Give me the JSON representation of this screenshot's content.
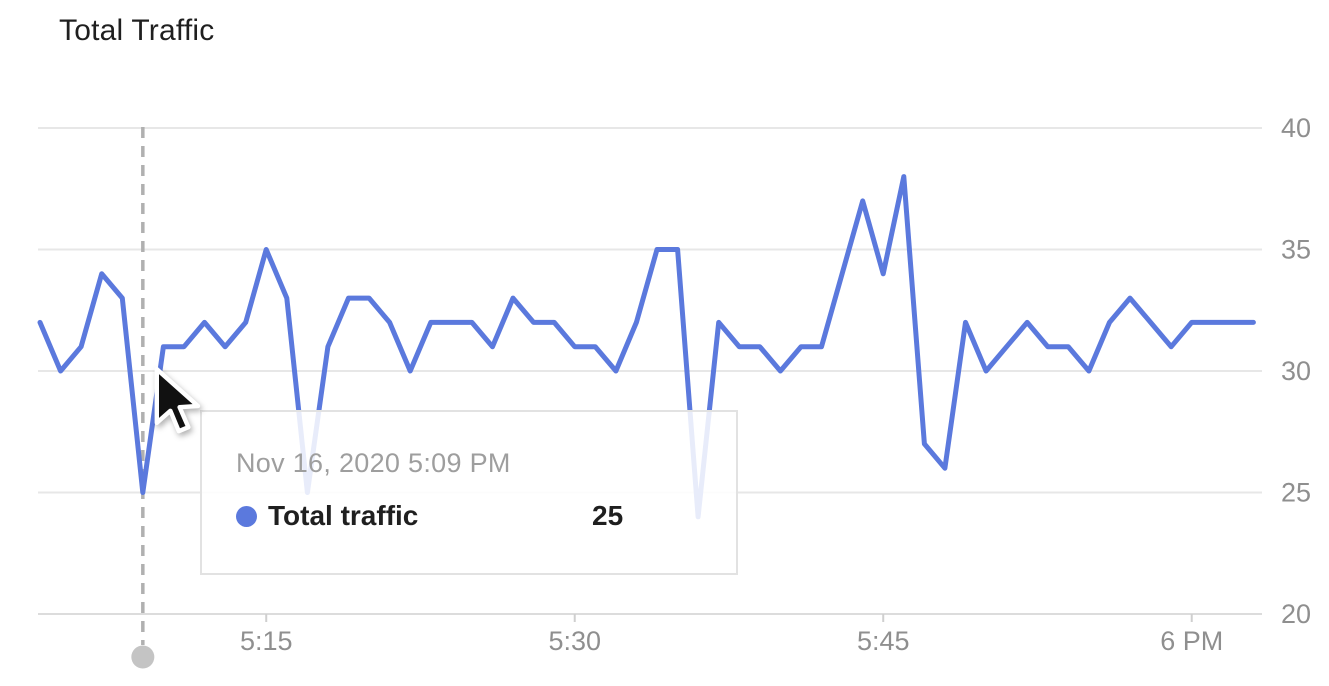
{
  "title": "Total Traffic",
  "tooltip": {
    "date": "Nov 16, 2020 5:09 PM",
    "series_label": "Total traffic",
    "value": "25"
  },
  "chart_data": {
    "type": "line",
    "title": "Total Traffic",
    "x": [
      "5:04",
      "5:05",
      "5:06",
      "5:07",
      "5:08",
      "5:09",
      "5:10",
      "5:11",
      "5:12",
      "5:13",
      "5:14",
      "5:15",
      "5:16",
      "5:17",
      "5:18",
      "5:19",
      "5:20",
      "5:21",
      "5:22",
      "5:23",
      "5:24",
      "5:25",
      "5:26",
      "5:27",
      "5:28",
      "5:29",
      "5:30",
      "5:31",
      "5:32",
      "5:33",
      "5:34",
      "5:35",
      "5:36",
      "5:37",
      "5:38",
      "5:39",
      "5:40",
      "5:41",
      "5:42",
      "5:43",
      "5:44",
      "5:45",
      "5:46",
      "5:47",
      "5:48",
      "5:49",
      "5:50",
      "5:51",
      "5:52",
      "5:53",
      "5:54",
      "5:55",
      "5:56",
      "5:57",
      "5:58",
      "5:59",
      "6:00",
      "6:01",
      "6:02",
      "6:03"
    ],
    "series": [
      {
        "name": "Total traffic",
        "color": "#5b79dd",
        "values": [
          32,
          30,
          31,
          34,
          33,
          25,
          31,
          31,
          32,
          31,
          32,
          35,
          33,
          25,
          31,
          33,
          33,
          32,
          30,
          32,
          32,
          32,
          31,
          33,
          32,
          32,
          31,
          31,
          30,
          32,
          35,
          35,
          24,
          32,
          31,
          31,
          30,
          31,
          31,
          34,
          37,
          34,
          38,
          27,
          26,
          32,
          30,
          31,
          32,
          31,
          31,
          30,
          32,
          33,
          32,
          31,
          32,
          32,
          32,
          32
        ]
      }
    ],
    "x_tick_labels": [
      {
        "label": "5:15",
        "index": 11
      },
      {
        "label": "5:30",
        "index": 26
      },
      {
        "label": "5:45",
        "index": 41
      },
      {
        "label": "6 PM",
        "index": 56
      }
    ],
    "y_ticks": [
      40,
      35,
      30,
      25,
      20
    ],
    "ylim": [
      20,
      40
    ],
    "grid": true,
    "legend_position": "tooltip-only",
    "hover": {
      "index": 5,
      "time": "Nov 16, 2020 5:09 PM",
      "value": 25
    },
    "colors": {
      "line": "#5b79dd",
      "gridline": "#e7e7e7",
      "axis_line": "#dcdcdc",
      "tick_mark": "#cfcfcf",
      "axis_label": "#8f8f8f",
      "hover_dash_line": "#b0b0b0",
      "scrubber_dot": "#c4c4c4"
    }
  },
  "icons": {
    "cursor": "mouse-pointer-arrow",
    "scrubber": "gray-handle-dot",
    "series_dot": "blue-series-dot"
  }
}
